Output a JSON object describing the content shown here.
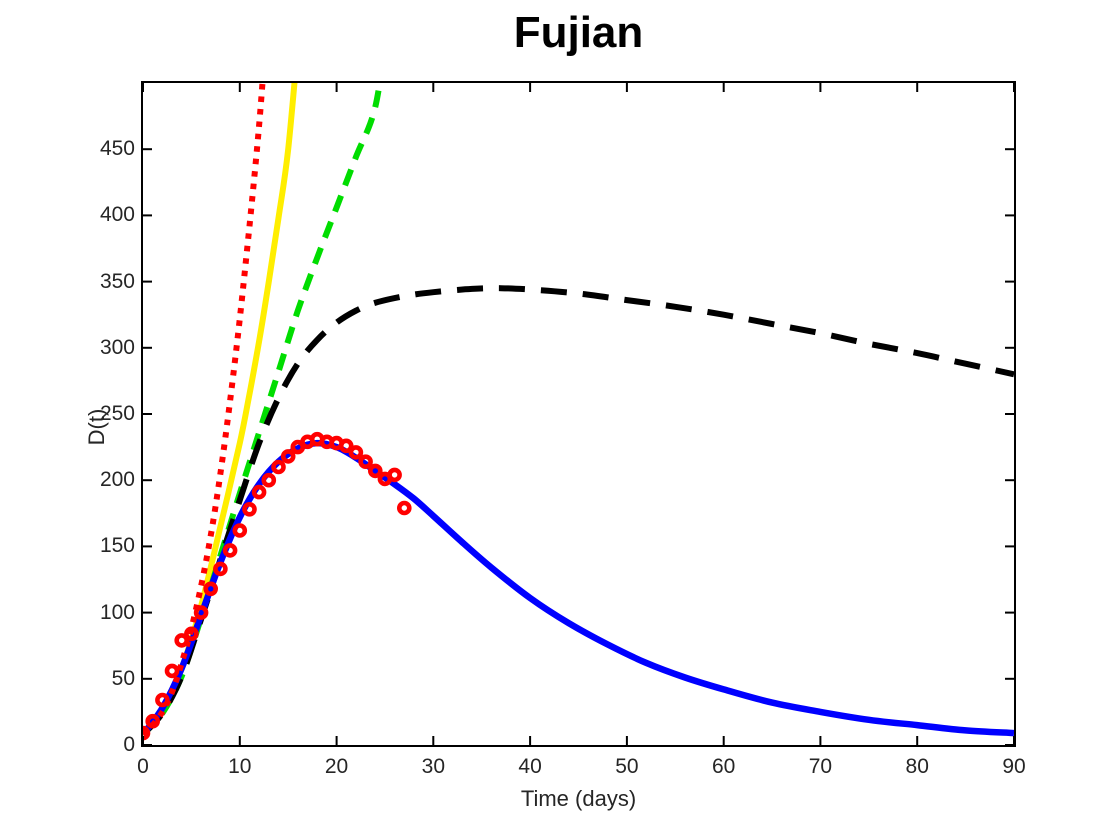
{
  "chart_data": {
    "type": "line",
    "title": "Fujian",
    "xlabel": "Time (days)",
    "ylabel": "D(t)",
    "xlim": [
      0,
      90
    ],
    "ylim": [
      0,
      500
    ],
    "xticks": [
      0,
      10,
      20,
      30,
      40,
      50,
      60,
      70,
      80,
      90
    ],
    "yticks": [
      0,
      50,
      100,
      150,
      200,
      250,
      300,
      350,
      400,
      450
    ],
    "grid": false,
    "legend": null,
    "series": [
      {
        "name": "yellow-solid-growth",
        "kind": "line",
        "color": "#ffee00",
        "dash": null,
        "width": 6,
        "points": [
          [
            0,
            8
          ],
          [
            2,
            26
          ],
          [
            4,
            58
          ],
          [
            6,
            105
          ],
          [
            8,
            165
          ],
          [
            10,
            228
          ],
          [
            11,
            265
          ],
          [
            12,
            305
          ],
          [
            13,
            350
          ],
          [
            14,
            398
          ],
          [
            15,
            450
          ],
          [
            16.2,
            545
          ]
        ]
      },
      {
        "name": "green-dashed-growth",
        "kind": "line",
        "color": "#00dd00",
        "dash": [
          17,
          11
        ],
        "width": 6,
        "points": [
          [
            0,
            8
          ],
          [
            2,
            24
          ],
          [
            4,
            52
          ],
          [
            6,
            96
          ],
          [
            8,
            143
          ],
          [
            10,
            190
          ],
          [
            12,
            236
          ],
          [
            14,
            282
          ],
          [
            16,
            328
          ],
          [
            18,
            368
          ],
          [
            20,
            406
          ],
          [
            22,
            444
          ],
          [
            24,
            482
          ],
          [
            25.3,
            545
          ]
        ]
      },
      {
        "name": "black-dashed-model",
        "kind": "line",
        "color": "#000000",
        "dash": [
          26,
          16
        ],
        "width": 6,
        "points": [
          [
            0,
            8
          ],
          [
            2,
            24
          ],
          [
            4,
            52
          ],
          [
            6,
            95
          ],
          [
            8,
            140
          ],
          [
            10,
            185
          ],
          [
            12,
            228
          ],
          [
            14,
            262
          ],
          [
            16,
            288
          ],
          [
            18,
            306
          ],
          [
            20,
            319
          ],
          [
            22,
            328
          ],
          [
            24,
            334
          ],
          [
            27,
            339
          ],
          [
            30,
            342
          ],
          [
            34,
            344.5
          ],
          [
            37,
            345
          ],
          [
            40,
            344
          ],
          [
            45,
            341
          ],
          [
            50,
            336
          ],
          [
            55,
            331
          ],
          [
            60,
            325
          ],
          [
            65,
            318
          ],
          [
            70,
            311
          ],
          [
            75,
            303
          ],
          [
            80,
            296
          ],
          [
            85,
            288
          ],
          [
            90,
            280
          ]
        ]
      },
      {
        "name": "blue-solid-fit",
        "kind": "line",
        "color": "#0000ff",
        "dash": null,
        "width": 6.5,
        "points": [
          [
            0,
            8
          ],
          [
            2,
            28
          ],
          [
            4,
            58
          ],
          [
            6,
            98
          ],
          [
            8,
            138
          ],
          [
            10,
            172
          ],
          [
            12,
            197
          ],
          [
            14,
            214
          ],
          [
            16,
            224
          ],
          [
            18,
            228
          ],
          [
            20,
            225
          ],
          [
            22,
            217
          ],
          [
            24,
            207
          ],
          [
            26,
            197
          ],
          [
            28,
            186
          ],
          [
            30,
            173
          ],
          [
            33,
            153
          ],
          [
            36,
            134
          ],
          [
            40,
            111
          ],
          [
            44,
            92
          ],
          [
            48,
            76
          ],
          [
            52,
            62
          ],
          [
            56,
            51
          ],
          [
            60,
            42
          ],
          [
            65,
            32
          ],
          [
            70,
            25
          ],
          [
            75,
            19
          ],
          [
            80,
            15
          ],
          [
            85,
            11
          ],
          [
            90,
            9
          ]
        ]
      },
      {
        "name": "red-dotted-growth",
        "kind": "line",
        "color": "#ff0000",
        "dash": [
          5.5,
          7
        ],
        "width": 6,
        "points": [
          [
            0,
            8
          ],
          [
            1,
            15
          ],
          [
            2,
            25
          ],
          [
            3,
            40
          ],
          [
            4,
            62
          ],
          [
            5,
            88
          ],
          [
            6,
            120
          ],
          [
            7,
            158
          ],
          [
            8,
            205
          ],
          [
            9,
            260
          ],
          [
            10,
            322
          ],
          [
            11,
            392
          ],
          [
            12,
            468
          ],
          [
            12.8,
            545
          ]
        ]
      },
      {
        "name": "reported-data-markers",
        "kind": "scatter",
        "color": "#ff0000",
        "marker": "open-circle",
        "marker_radius": 5,
        "marker_stroke": 4.6,
        "x": [
          0,
          1,
          2,
          3,
          4,
          5,
          6,
          7,
          8,
          9,
          10,
          11,
          12,
          13,
          14,
          15,
          16,
          17,
          18,
          19,
          20,
          21,
          22,
          23,
          24,
          25,
          26,
          27
        ],
        "y": [
          9,
          18,
          34,
          56,
          79,
          84,
          100,
          118,
          133,
          147,
          162,
          178,
          191,
          200,
          210,
          218,
          225,
          229,
          231,
          229,
          228,
          226,
          221,
          214,
          207,
          201,
          204,
          179
        ]
      }
    ]
  },
  "style": {
    "axis_color": "#000000",
    "tick_label_color": "#262626",
    "title_color": "#000000",
    "background": "#ffffff"
  }
}
